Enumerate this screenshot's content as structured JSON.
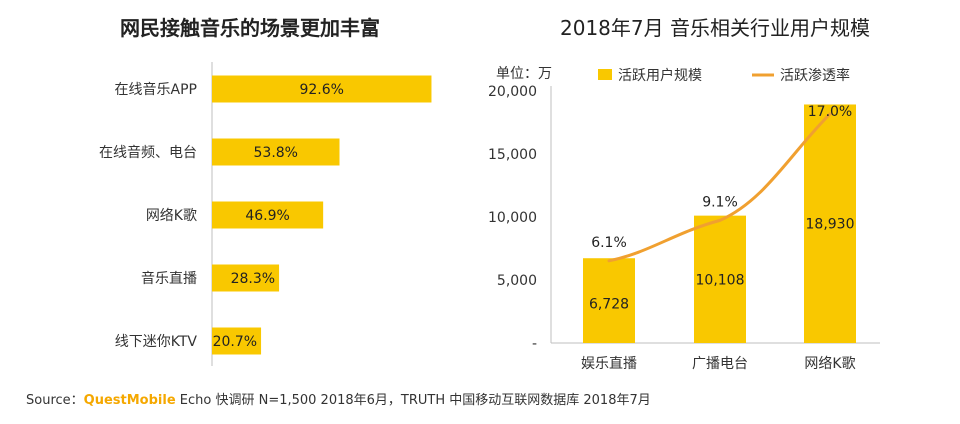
{
  "source": {
    "label": "Source：",
    "brand": "QuestMobile",
    "text": " Echo 快调研 N=1,500 2018年6月，TRUTH 中国移动互联网数据库 2018年7月"
  },
  "colors": {
    "bar": "#f9c800",
    "line": "#f0a030",
    "text": "#222222",
    "brand": "#f5a800"
  },
  "chart_data": [
    {
      "type": "bar",
      "orientation": "horizontal",
      "title": "网民接触音乐的场景更加丰富",
      "categories": [
        "在线音乐APP",
        "在线音频、电台",
        "网络K歌",
        "音乐直播",
        "线下迷你KTV"
      ],
      "values": [
        92.6,
        53.8,
        46.9,
        28.3,
        20.7
      ],
      "value_labels": [
        "92.6%",
        "53.8%",
        "46.9%",
        "28.3%",
        "20.7%"
      ],
      "xlim": [
        0,
        100
      ],
      "grid": false
    },
    {
      "type": "bar",
      "title": "2018年7月 音乐相关行业用户规模",
      "unit": "单位：万",
      "categories": [
        "娱乐直播",
        "广播电台",
        "网络K歌"
      ],
      "series": [
        {
          "name": "活跃用户规模",
          "type": "bar",
          "values": [
            6728,
            10108,
            18930
          ],
          "value_labels": [
            "6,728",
            "10,108",
            "18,930"
          ]
        },
        {
          "name": "活跃渗透率",
          "type": "line",
          "values": [
            6.1,
            9.1,
            17.0
          ],
          "value_labels": [
            "6.1%",
            "9.1%",
            "17.0%"
          ]
        }
      ],
      "ylim": [
        0,
        20000
      ],
      "y_ticks": [
        "-",
        "5,000",
        "10,000",
        "15,000",
        "20,000"
      ],
      "legend_position": "top",
      "grid": false
    }
  ]
}
